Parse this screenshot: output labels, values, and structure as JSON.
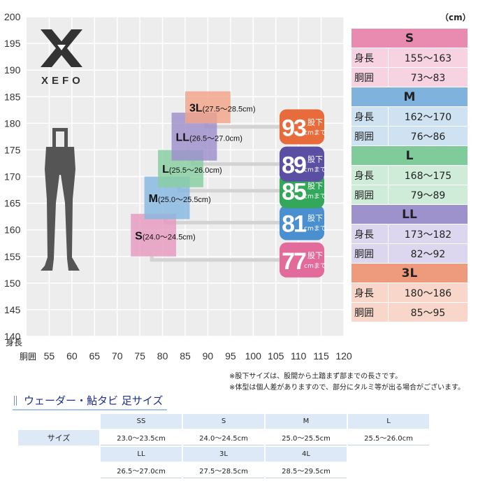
{
  "unit_label": "（cm）",
  "chart_data": {
    "type": "scatter",
    "title": "",
    "xlabel": "胴囲",
    "ylabel": "身長",
    "xlim": [
      50,
      120
    ],
    "ylim": [
      140,
      200
    ],
    "x_ticks": [
      55,
      60,
      65,
      70,
      75,
      80,
      85,
      90,
      95,
      100,
      105,
      110,
      115,
      120
    ],
    "y_ticks": [
      140,
      145,
      150,
      155,
      160,
      165,
      170,
      175,
      180,
      185,
      190,
      195,
      200
    ],
    "grid": true,
    "sizes": [
      {
        "id": "s",
        "name": "S",
        "foot": "(24.0〜24.5cm)",
        "waist": [
          73,
          83
        ],
        "height": [
          155,
          163
        ],
        "inseam": "77",
        "color": "#e79abf",
        "badge": "#e26b9c"
      },
      {
        "id": "m",
        "name": "M",
        "foot": "(25.0〜25.5cm)",
        "waist": [
          76,
          86
        ],
        "height": [
          162,
          170
        ],
        "inseam": "81",
        "color": "#86b7e0",
        "badge": "#4a8fcf"
      },
      {
        "id": "l",
        "name": "L",
        "foot": "(25.5〜26.0cm)",
        "waist": [
          79,
          89
        ],
        "height": [
          168,
          175
        ],
        "inseam": "85",
        "color": "#86cea1",
        "badge": "#34a85a"
      },
      {
        "id": "ll",
        "name": "LL",
        "foot": "(26.5〜27.0cm)",
        "waist": [
          82,
          92
        ],
        "height": [
          173,
          182
        ],
        "inseam": "89",
        "color": "#9e8fcc",
        "badge": "#5b4fa3"
      },
      {
        "id": "3l",
        "name": "3L",
        "foot": "(27.5〜28.5cm)",
        "waist": [
          85,
          95
        ],
        "height": [
          180,
          186
        ],
        "inseam": "93",
        "color": "#f1a489",
        "badge": "#e86b3c"
      }
    ],
    "badge_unit_top": "股下",
    "badge_unit_bottom": "cmまで"
  },
  "logo": {
    "wordmark": "XEFO"
  },
  "size_table": {
    "row_label_height": "身長",
    "row_label_waist": "胴囲",
    "rows": [
      {
        "size": "S",
        "height": "155〜163",
        "waist": "73〜83",
        "hdr": "#e98bb0",
        "bg": "#f7d3e1"
      },
      {
        "size": "M",
        "height": "162〜170",
        "waist": "76〜86",
        "hdr": "#7fb2dc",
        "bg": "#cfe2f2"
      },
      {
        "size": "L",
        "height": "168〜175",
        "waist": "79〜89",
        "hdr": "#7fcb9a",
        "bg": "#cfecd9"
      },
      {
        "size": "LL",
        "height": "173〜182",
        "waist": "82〜92",
        "hdr": "#9e92cd",
        "bg": "#dcd7ee"
      },
      {
        "size": "3L",
        "height": "180〜186",
        "waist": "85〜95",
        "hdr": "#ee9a7c",
        "bg": "#f8d7ca"
      }
    ]
  },
  "notes": [
    "※股下サイズは、股間から土踏まず部までの長さです。",
    "※体型は個人差がありますので、部分にタルミ等が出る場合がございます。"
  ],
  "boots": {
    "title": "ウェーダー・鮎タビ 足サイズ",
    "row_label": "サイズ",
    "row1": [
      {
        "size": "SS",
        "foot": "23.0〜23.5cm"
      },
      {
        "size": "S",
        "foot": "24.0〜24.5cm"
      },
      {
        "size": "M",
        "foot": "25.0〜25.5cm"
      },
      {
        "size": "L",
        "foot": "25.5〜26.0cm"
      }
    ],
    "row2": [
      {
        "size": "LL",
        "foot": "26.5〜27.0cm"
      },
      {
        "size": "3L",
        "foot": "27.5〜28.5cm"
      },
      {
        "size": "4L",
        "foot": "28.5〜29.5cm"
      }
    ]
  }
}
